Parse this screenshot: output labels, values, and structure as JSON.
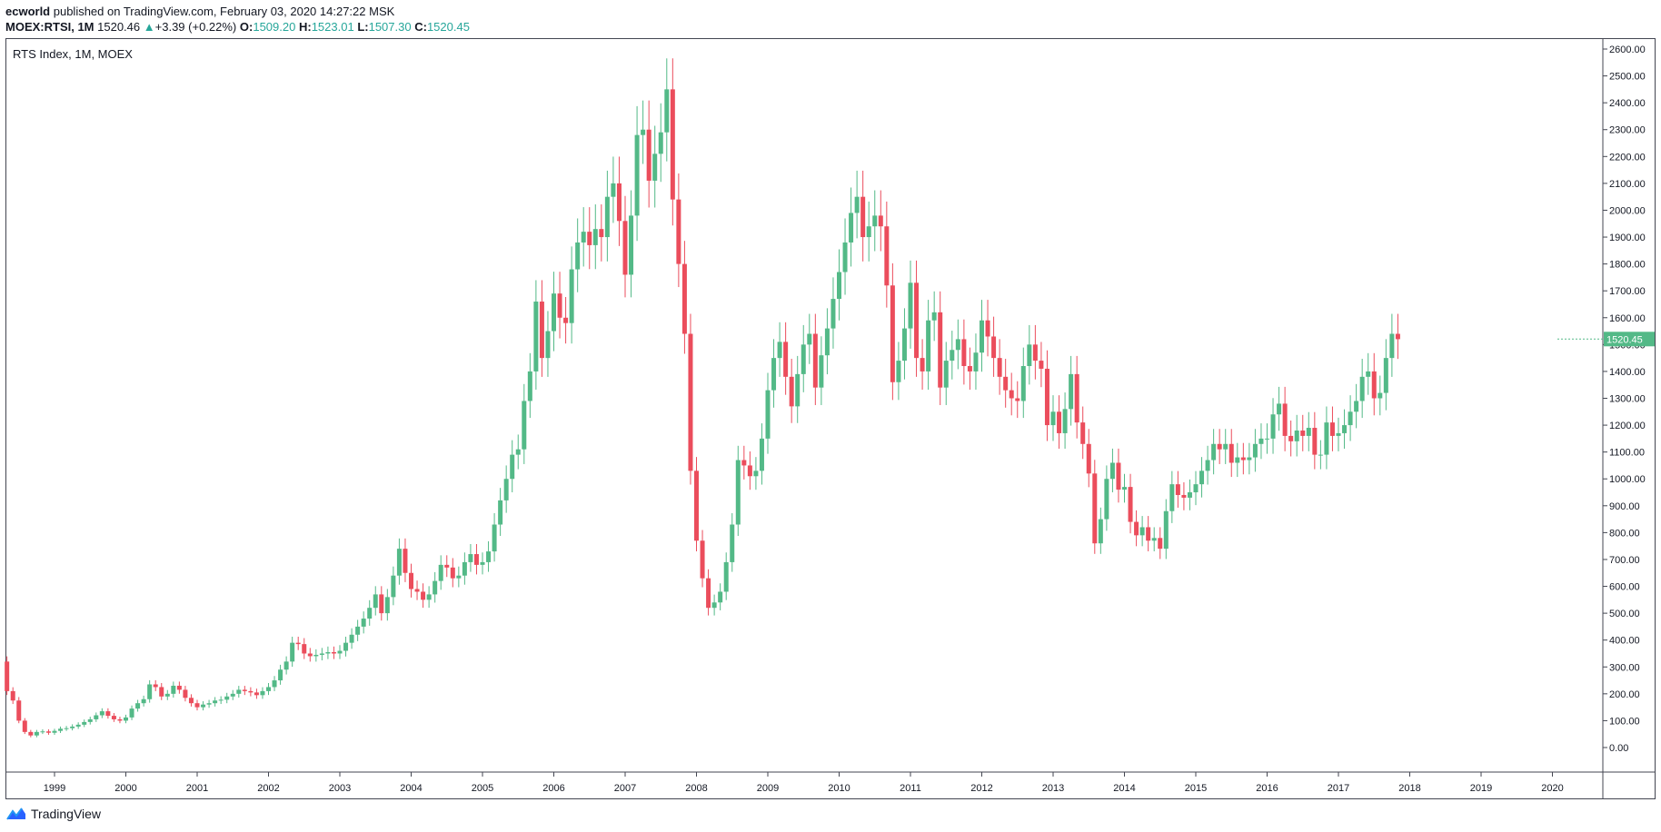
{
  "header": {
    "author": "ecworld",
    "published_text": " published on TradingView.com, February 03, 2020 14:27:22 MSK",
    "symbol": "MOEX:RTSI, 1M",
    "last": "1520.46",
    "change_arrow": "▲",
    "change": "+3.39 (+0.22%)",
    "o_label": "O:",
    "o_value": "1509.20",
    "h_label": "H:",
    "h_value": "1523.01",
    "l_label": "L:",
    "l_value": "1507.30",
    "c_label": "C:",
    "c_value": "1520.45"
  },
  "footer": {
    "brand": "TradingView"
  },
  "colors": {
    "up": "#53b987",
    "down": "#eb4d5c",
    "axis": "#434651",
    "text": "#131722",
    "price_badge": "#53b987"
  },
  "chart_data": {
    "type": "candlestick",
    "title": "RTS Index, 1M, MOEX",
    "last_price_label": "1520.45",
    "ylim": [
      -100,
      2620
    ],
    "xlim": [
      1998.35,
      2020.6
    ],
    "y_ticks": [
      "0.00",
      "100.00",
      "200.00",
      "300.00",
      "400.00",
      "500.00",
      "600.00",
      "700.00",
      "800.00",
      "900.00",
      "1000.00",
      "1100.00",
      "1200.00",
      "1300.00",
      "1400.00",
      "1500.00",
      "1600.00",
      "1700.00",
      "1800.00",
      "1900.00",
      "2000.00",
      "2100.00",
      "2200.00",
      "2300.00",
      "2400.00",
      "2500.00",
      "2600.00"
    ],
    "x_ticks": [
      "1999",
      "2000",
      "2001",
      "2002",
      "2003",
      "2004",
      "2005",
      "2006",
      "2007",
      "2008",
      "2009",
      "2010",
      "2011",
      "2012",
      "2013",
      "2014",
      "2015",
      "2016",
      "2017",
      "2018",
      "2019",
      "2020"
    ],
    "start": "1998-05",
    "closes": [
      210,
      175,
      100,
      58,
      45,
      58,
      60,
      55,
      62,
      70,
      72,
      78,
      85,
      95,
      105,
      120,
      135,
      118,
      105,
      100,
      112,
      145,
      165,
      180,
      235,
      225,
      190,
      200,
      230,
      215,
      185,
      165,
      150,
      160,
      165,
      175,
      178,
      190,
      200,
      215,
      210,
      205,
      195,
      210,
      225,
      250,
      290,
      320,
      390,
      385,
      350,
      340,
      345,
      350,
      355,
      350,
      360,
      390,
      420,
      450,
      480,
      520,
      570,
      500,
      560,
      640,
      740,
      650,
      590,
      580,
      550,
      570,
      620,
      680,
      670,
      630,
      640,
      690,
      720,
      680,
      690,
      730,
      830,
      920,
      1000,
      1090,
      1110,
      1290,
      1400,
      1660,
      1450,
      1550,
      1690,
      1600,
      1580,
      1780,
      1880,
      1920,
      1870,
      1930,
      1900,
      2050,
      2100,
      1960,
      1760,
      1980,
      2280,
      2300,
      2110,
      2210,
      2290,
      2450,
      2040,
      1800,
      1540,
      1030,
      770,
      630,
      520,
      540,
      580,
      690,
      830,
      1070,
      1050,
      1010,
      1030,
      1150,
      1330,
      1450,
      1510,
      1380,
      1270,
      1390,
      1500,
      1540,
      1340,
      1460,
      1560,
      1670,
      1770,
      1880,
      1990,
      2050,
      1900,
      1940,
      1980,
      1940,
      1720,
      1360,
      1440,
      1560,
      1730,
      1450,
      1400,
      1590,
      1620,
      1340,
      1440,
      1480,
      1520,
      1420,
      1400,
      1470,
      1590,
      1530,
      1450,
      1380,
      1330,
      1300,
      1290,
      1420,
      1500,
      1440,
      1410,
      1200,
      1250,
      1170,
      1260,
      1390,
      1210,
      1130,
      1020,
      760,
      850,
      1000,
      1060,
      960,
      970,
      840,
      790,
      820,
      770,
      780,
      740,
      880,
      980,
      940,
      930,
      950,
      980,
      1030,
      1070,
      1130,
      1110,
      1130,
      1060,
      1080,
      1070,
      1080,
      1130,
      1150,
      1150,
      1240,
      1280,
      1160,
      1140,
      1180,
      1160,
      1190,
      1090,
      1090,
      1210,
      1160,
      1170,
      1200,
      1250,
      1290,
      1380,
      1400,
      1300,
      1320,
      1450,
      1540,
      1520
    ]
  }
}
